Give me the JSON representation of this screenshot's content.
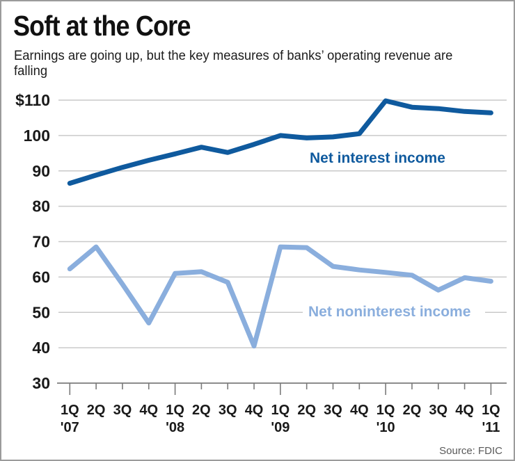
{
  "header": {
    "title": "Soft at the Core",
    "subtitle": "Earnings are going up, but the key measures of banks’ operating revenue are falling"
  },
  "source": {
    "label": "Source: FDIC"
  },
  "chart_data": {
    "type": "line",
    "title": "Soft at the Core",
    "subtitle": "Earnings are going up, but the key measures of banks’ operating revenue are falling",
    "categories": [
      "1Q'07",
      "2Q'07",
      "3Q'07",
      "4Q'07",
      "1Q'08",
      "2Q'08",
      "3Q'08",
      "4Q'08",
      "1Q'09",
      "2Q'09",
      "3Q'09",
      "4Q'09",
      "1Q'10",
      "2Q'10",
      "3Q'10",
      "4Q'10",
      "1Q'11"
    ],
    "quarter_tick_cycle": [
      "1Q",
      "2Q",
      "3Q",
      "4Q"
    ],
    "year_labels": [
      "'07",
      "'08",
      "'09",
      "'10",
      "'11"
    ],
    "series": [
      {
        "name": "Net interest income",
        "color": "#0f5a9e",
        "values": [
          86.5,
          88.8,
          91.0,
          93.0,
          94.8,
          96.7,
          95.2,
          97.5,
          100.0,
          99.3,
          99.6,
          100.5,
          109.8,
          108.0,
          107.6,
          106.8,
          106.4
        ]
      },
      {
        "name": "Net noninterest income",
        "color": "#8aaedd",
        "values": [
          62.3,
          68.5,
          58.0,
          47.0,
          61.0,
          61.5,
          58.5,
          40.5,
          68.5,
          68.3,
          63.0,
          62.0,
          61.3,
          60.5,
          56.3,
          59.8,
          58.8
        ]
      }
    ],
    "y_axis": {
      "tick_values": [
        110,
        100,
        90,
        80,
        70,
        60,
        50,
        40,
        30
      ],
      "tick_labels": [
        "$110",
        "100",
        "90",
        "80",
        "70",
        "60",
        "50",
        "40",
        "30"
      ]
    },
    "ylim": [
      30,
      110
    ],
    "xlabel": "",
    "ylabel": "",
    "grid": true,
    "legend_position": "inline-labels"
  }
}
